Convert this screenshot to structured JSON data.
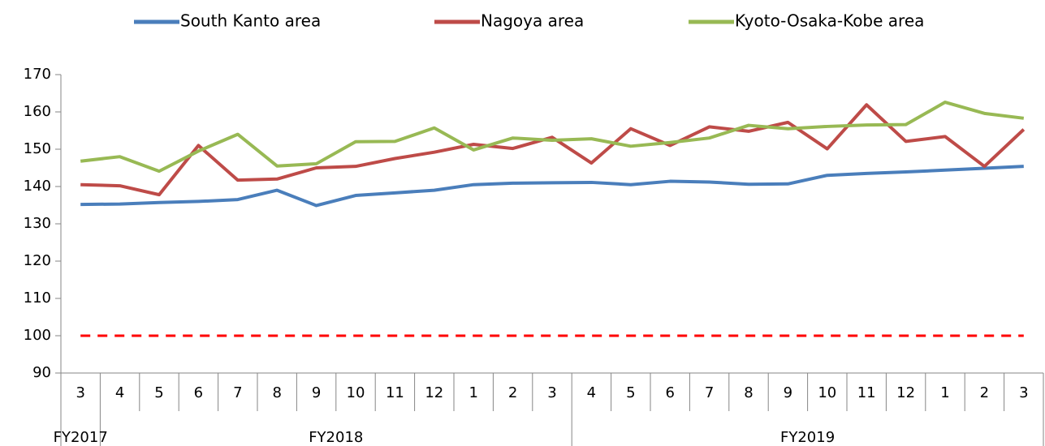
{
  "chart_data": {
    "type": "line",
    "categories": [
      "3",
      "4",
      "5",
      "6",
      "7",
      "8",
      "9",
      "10",
      "11",
      "12",
      "1",
      "2",
      "3",
      "4",
      "5",
      "6",
      "7",
      "8",
      "9",
      "10",
      "11",
      "12",
      "1",
      "2",
      "3"
    ],
    "groups": [
      {
        "label": "FY2017",
        "size": 1
      },
      {
        "label": "FY2018",
        "size": 12
      },
      {
        "label": "FY2019",
        "size": 12
      }
    ],
    "series": [
      {
        "name": "South Kanto area",
        "color": "#4a7ebb",
        "values": [
          135.2,
          135.3,
          135.7,
          136,
          136.5,
          139,
          134.9,
          137.6,
          138.3,
          139,
          140.5,
          140.9,
          141,
          141.1,
          140.5,
          141.4,
          141.2,
          140.6,
          140.7,
          143,
          143.5,
          143.9,
          144.4,
          144.9,
          145.4
        ]
      },
      {
        "name": "Nagoya area",
        "color": "#be4b48",
        "values": [
          140.5,
          140.2,
          137.8,
          151,
          141.7,
          142,
          145,
          145.4,
          147.5,
          149.2,
          151.3,
          150.2,
          153.2,
          146.3,
          155.5,
          151,
          156,
          154.8,
          157.2,
          150.1,
          161.9,
          152.1,
          153.4,
          145.4,
          155.3
        ]
      },
      {
        "name": "Kyoto-Osaka-Kobe area",
        "color": "#98b954",
        "values": [
          146.8,
          148,
          144.1,
          149.5,
          154,
          145.5,
          146.1,
          152,
          152.1,
          155.7,
          149.8,
          153,
          152.4,
          152.8,
          150.8,
          151.8,
          153,
          156.4,
          155.5,
          156.1,
          156.5,
          156.6,
          162.6,
          159.6,
          158.3
        ]
      }
    ],
    "reference_line": {
      "value": 100,
      "color": "#ff0000",
      "dashed": true
    },
    "ylim": [
      90,
      170
    ],
    "yticks": [
      90,
      100,
      110,
      120,
      130,
      140,
      150,
      160,
      170
    ],
    "grid": false,
    "legend": "top"
  }
}
